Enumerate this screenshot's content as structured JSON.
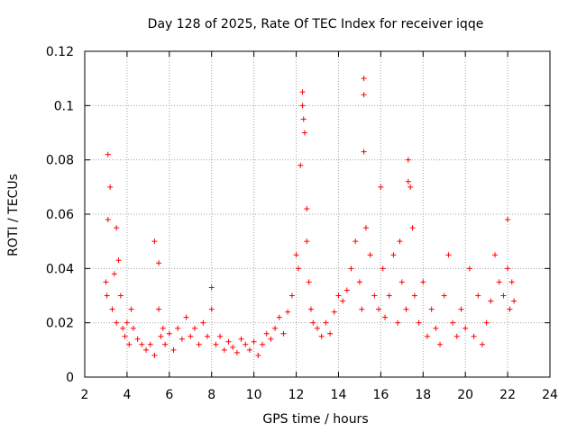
{
  "chart_data": {
    "type": "scatter",
    "title": "Day 128 of 2025, Rate Of TEC Index for receiver iqqe",
    "xlabel": "GPS time / hours",
    "ylabel": "ROTI / TECUs",
    "xlim": [
      2,
      24
    ],
    "ylim": [
      0,
      0.12
    ],
    "xticks": [
      "2",
      "4",
      "6",
      "8",
      "10",
      "12",
      "14",
      "16",
      "18",
      "20",
      "22",
      "24"
    ],
    "yticks": [
      "0",
      "0.02",
      "0.04",
      "0.06",
      "0.08",
      "0.1",
      "0.12"
    ],
    "grid": true,
    "marker": "plus",
    "color": "#ff0000",
    "x": [
      3.0,
      3.1,
      3.2,
      3.1,
      3.05,
      3.3,
      3.4,
      3.5,
      3.5,
      3.6,
      3.7,
      3.8,
      3.9,
      4.0,
      4.1,
      4.2,
      4.3,
      4.5,
      4.7,
      4.9,
      5.1,
      5.3,
      5.3,
      5.5,
      5.5,
      5.6,
      5.7,
      5.8,
      6.0,
      6.2,
      6.4,
      6.6,
      6.8,
      7.0,
      7.2,
      7.4,
      7.6,
      7.8,
      8.0,
      8.0,
      8.2,
      8.4,
      8.6,
      8.8,
      9.0,
      9.2,
      9.4,
      9.6,
      9.8,
      10.0,
      10.2,
      10.4,
      10.6,
      10.8,
      11.0,
      11.2,
      11.4,
      11.6,
      11.8,
      12.0,
      12.1,
      12.2,
      12.3,
      12.35,
      12.4,
      12.5,
      12.5,
      12.6,
      12.7,
      12.8,
      13.0,
      13.2,
      13.4,
      13.6,
      13.8,
      14.0,
      14.2,
      14.4,
      14.6,
      14.8,
      15.0,
      15.1,
      15.2,
      15.2,
      15.3,
      15.5,
      15.7,
      15.9,
      16.0,
      16.1,
      16.2,
      16.4,
      16.6,
      16.8,
      17.0,
      17.2,
      17.3,
      17.4,
      17.5,
      17.6,
      17.8,
      18.0,
      18.2,
      18.4,
      18.6,
      18.8,
      19.0,
      19.2,
      19.4,
      19.6,
      19.8,
      20.0,
      20.2,
      20.4,
      20.6,
      20.8,
      21.0,
      21.2,
      21.4,
      21.6,
      21.8,
      22.0,
      22.0,
      22.1,
      22.2,
      22.3,
      15.2,
      12.3,
      17.3,
      16.9
    ],
    "y": [
      0.035,
      0.082,
      0.07,
      0.058,
      0.03,
      0.025,
      0.038,
      0.055,
      0.02,
      0.043,
      0.03,
      0.018,
      0.015,
      0.02,
      0.012,
      0.025,
      0.018,
      0.014,
      0.012,
      0.01,
      0.012,
      0.05,
      0.008,
      0.042,
      0.025,
      0.015,
      0.018,
      0.012,
      0.016,
      0.01,
      0.018,
      0.014,
      0.022,
      0.015,
      0.018,
      0.012,
      0.02,
      0.015,
      0.033,
      0.025,
      0.012,
      0.015,
      0.01,
      0.013,
      0.011,
      0.009,
      0.014,
      0.012,
      0.01,
      0.013,
      0.008,
      0.012,
      0.016,
      0.014,
      0.018,
      0.022,
      0.016,
      0.024,
      0.03,
      0.045,
      0.04,
      0.078,
      0.105,
      0.095,
      0.09,
      0.062,
      0.05,
      0.035,
      0.025,
      0.02,
      0.018,
      0.015,
      0.02,
      0.016,
      0.024,
      0.03,
      0.028,
      0.032,
      0.04,
      0.05,
      0.035,
      0.025,
      0.11,
      0.083,
      0.055,
      0.045,
      0.03,
      0.025,
      0.07,
      0.04,
      0.022,
      0.03,
      0.045,
      0.02,
      0.035,
      0.025,
      0.08,
      0.07,
      0.055,
      0.03,
      0.02,
      0.035,
      0.015,
      0.025,
      0.018,
      0.012,
      0.03,
      0.045,
      0.02,
      0.015,
      0.025,
      0.018,
      0.04,
      0.015,
      0.03,
      0.012,
      0.02,
      0.028,
      0.045,
      0.035,
      0.03,
      0.058,
      0.04,
      0.025,
      0.035,
      0.028,
      0.104,
      0.1,
      0.072,
      0.05
    ]
  }
}
